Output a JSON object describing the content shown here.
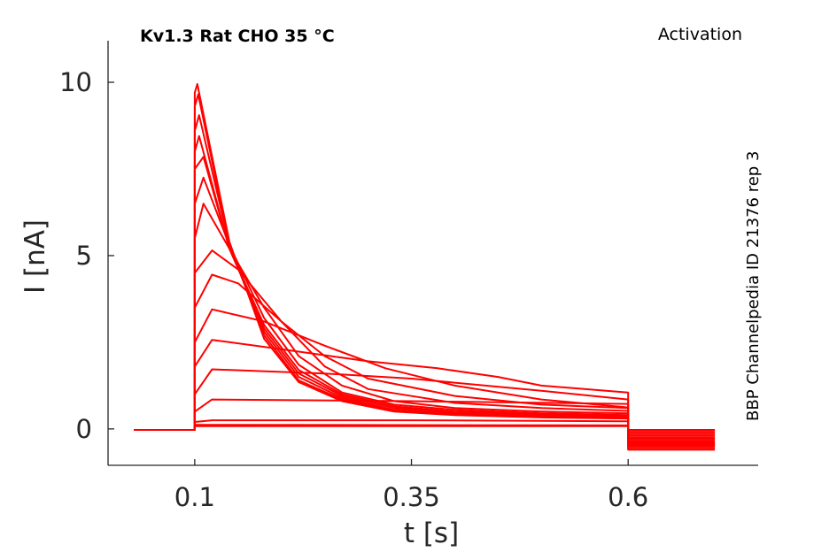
{
  "chart_data": {
    "type": "line",
    "title": "Kv1.3  Rat  CHO  35 °C",
    "protocol": "Activation",
    "side_label": "BBP Channelpedia ID 21376 rep 3",
    "xlabel": "t [s]",
    "ylabel": "I [nA]",
    "xlim": [
      0.0,
      0.75
    ],
    "ylim": [
      -1.05,
      11.2
    ],
    "x_ticks": [
      0.1,
      0.35,
      0.6
    ],
    "x_tick_labels": [
      "0.1",
      "0.35",
      "0.6"
    ],
    "y_ticks": [
      0,
      5,
      10
    ],
    "y_tick_labels": [
      "0",
      "5",
      "10"
    ],
    "grid": false,
    "trace_color": "#ff0000",
    "pulse_start": 0.1,
    "pulse_end": 0.6,
    "series": [
      {
        "x": [
          0.03,
          0.1,
          0.1,
          0.6,
          0.6,
          0.7
        ],
        "y": [
          -0.03,
          -0.03,
          0.08,
          0.08,
          -0.03,
          -0.03
        ]
      },
      {
        "x": [
          0.03,
          0.1,
          0.1,
          0.6,
          0.6,
          0.7
        ],
        "y": [
          -0.03,
          -0.03,
          0.12,
          0.1,
          -0.05,
          -0.05
        ]
      },
      {
        "x": [
          0.03,
          0.1,
          0.1,
          0.12,
          0.35,
          0.6,
          0.6,
          0.7
        ],
        "y": [
          -0.03,
          -0.03,
          0.2,
          0.25,
          0.25,
          0.22,
          -0.1,
          -0.1
        ]
      },
      {
        "x": [
          0.03,
          0.1,
          0.1,
          0.12,
          0.35,
          0.6,
          0.6,
          0.7
        ],
        "y": [
          -0.03,
          -0.03,
          0.5,
          0.85,
          0.8,
          0.72,
          -0.15,
          -0.15
        ]
      },
      {
        "x": [
          0.03,
          0.1,
          0.1,
          0.12,
          0.25,
          0.35,
          0.5,
          0.6,
          0.6,
          0.7
        ],
        "y": [
          -0.03,
          -0.03,
          1.0,
          1.72,
          1.6,
          1.45,
          1.1,
          0.85,
          -0.2,
          -0.2
        ]
      },
      {
        "x": [
          0.03,
          0.1,
          0.1,
          0.12,
          0.2,
          0.3,
          0.38,
          0.45,
          0.5,
          0.6,
          0.6,
          0.7
        ],
        "y": [
          -0.03,
          -0.03,
          1.8,
          2.57,
          2.3,
          1.95,
          1.75,
          1.5,
          1.25,
          1.05,
          -0.25,
          -0.25
        ]
      },
      {
        "x": [
          0.03,
          0.1,
          0.1,
          0.12,
          0.18,
          0.25,
          0.32,
          0.4,
          0.5,
          0.6,
          0.6,
          0.7
        ],
        "y": [
          -0.03,
          -0.03,
          2.5,
          3.45,
          3.1,
          2.4,
          1.75,
          1.25,
          0.85,
          0.62,
          -0.3,
          -0.3
        ]
      },
      {
        "x": [
          0.03,
          0.1,
          0.1,
          0.12,
          0.15,
          0.2,
          0.25,
          0.3,
          0.4,
          0.5,
          0.6,
          0.6,
          0.7
        ],
        "y": [
          -0.03,
          -0.03,
          3.5,
          4.45,
          4.2,
          3.1,
          2.1,
          1.45,
          0.95,
          0.7,
          0.6,
          -0.3,
          -0.3
        ]
      },
      {
        "x": [
          0.03,
          0.1,
          0.1,
          0.12,
          0.15,
          0.2,
          0.25,
          0.3,
          0.4,
          0.5,
          0.6,
          0.6,
          0.7
        ],
        "y": [
          -0.03,
          -0.03,
          4.5,
          5.15,
          4.6,
          3.1,
          1.8,
          1.15,
          0.75,
          0.6,
          0.52,
          -0.35,
          -0.35
        ]
      },
      {
        "x": [
          0.03,
          0.1,
          0.1,
          0.11,
          0.14,
          0.18,
          0.22,
          0.27,
          0.33,
          0.4,
          0.5,
          0.6,
          0.6,
          0.7
        ],
        "y": [
          -0.03,
          -0.03,
          5.5,
          6.5,
          5.2,
          3.5,
          2.1,
          1.25,
          0.8,
          0.6,
          0.5,
          0.45,
          -0.4,
          -0.4
        ]
      },
      {
        "x": [
          0.03,
          0.1,
          0.1,
          0.11,
          0.14,
          0.18,
          0.22,
          0.27,
          0.33,
          0.4,
          0.5,
          0.6,
          0.6,
          0.7
        ],
        "y": [
          -0.03,
          -0.03,
          6.5,
          7.25,
          5.3,
          3.2,
          1.85,
          1.05,
          0.7,
          0.55,
          0.45,
          0.4,
          -0.45,
          -0.45
        ]
      },
      {
        "x": [
          0.03,
          0.1,
          0.1,
          0.11,
          0.14,
          0.18,
          0.22,
          0.27,
          0.33,
          0.4,
          0.5,
          0.6,
          0.6,
          0.7
        ],
        "y": [
          -0.03,
          -0.03,
          7.5,
          7.85,
          5.2,
          3.0,
          1.7,
          1.0,
          0.65,
          0.5,
          0.42,
          0.38,
          -0.45,
          -0.45
        ]
      },
      {
        "x": [
          0.03,
          0.1,
          0.1,
          0.105,
          0.14,
          0.18,
          0.22,
          0.27,
          0.33,
          0.4,
          0.5,
          0.6,
          0.6,
          0.7
        ],
        "y": [
          -0.03,
          -0.03,
          8.0,
          8.45,
          5.2,
          2.9,
          1.6,
          0.95,
          0.6,
          0.48,
          0.4,
          0.35,
          -0.45,
          -0.45
        ]
      },
      {
        "x": [
          0.03,
          0.1,
          0.1,
          0.105,
          0.14,
          0.18,
          0.22,
          0.27,
          0.33,
          0.4,
          0.5,
          0.6,
          0.6,
          0.7
        ],
        "y": [
          -0.03,
          -0.03,
          8.6,
          9.05,
          5.3,
          2.8,
          1.5,
          0.9,
          0.55,
          0.45,
          0.38,
          0.33,
          -0.5,
          -0.5
        ]
      },
      {
        "x": [
          0.03,
          0.1,
          0.1,
          0.104,
          0.14,
          0.18,
          0.22,
          0.27,
          0.33,
          0.4,
          0.5,
          0.6,
          0.6,
          0.7
        ],
        "y": [
          -0.03,
          -0.03,
          9.3,
          9.65,
          5.3,
          2.7,
          1.4,
          0.85,
          0.52,
          0.42,
          0.35,
          0.3,
          -0.55,
          -0.55
        ]
      },
      {
        "x": [
          0.03,
          0.1,
          0.1,
          0.103,
          0.14,
          0.18,
          0.22,
          0.27,
          0.33,
          0.4,
          0.5,
          0.6,
          0.6,
          0.7
        ],
        "y": [
          -0.03,
          -0.03,
          9.7,
          9.95,
          5.4,
          2.6,
          1.35,
          0.8,
          0.5,
          0.4,
          0.33,
          0.3,
          -0.6,
          -0.6
        ]
      }
    ]
  }
}
